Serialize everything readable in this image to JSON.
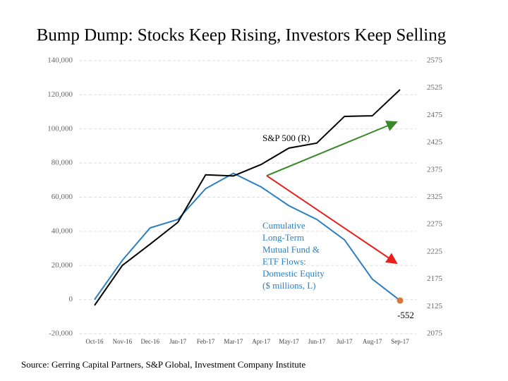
{
  "chart_data": {
    "type": "line",
    "title": "Bump Dump: Stocks Keep Rising, Investors Keep Selling",
    "source": "Source: Gerring Capital Partners, S&P Global, Investment Company Institute",
    "categories": [
      "Oct-16",
      "Nov-16",
      "Dec-16",
      "Jan-17",
      "Feb-17",
      "Mar-17",
      "Apr-17",
      "May-17",
      "Jun-17",
      "Jul-17",
      "Aug-17",
      "Sep-17"
    ],
    "series": [
      {
        "name": "Cumulative Long-Term Mutual Fund & ETF Flows: Domestic Equity ($ millions, L)",
        "color": "#2b7fc3",
        "axis": "y",
        "values": [
          0,
          23000,
          42000,
          47000,
          65000,
          74000,
          66000,
          55000,
          47000,
          35000,
          12000,
          -552
        ]
      },
      {
        "name": "S&P 500 (R)",
        "color": "#000000",
        "axis": "y2",
        "values": [
          2127,
          2200,
          2239,
          2279,
          2366,
          2364,
          2385,
          2415,
          2424,
          2473,
          2474,
          2522
        ]
      }
    ],
    "end_marker_color": "#d9773a",
    "annotations": {
      "sp500": "S&P 500 (R)",
      "flows": [
        "Cumulative",
        "Long-Term",
        "Mutual Fund &",
        "ETF Flows:",
        "Domestic Equity",
        "($ millions, L)"
      ]
    },
    "ylim": [
      -20000,
      140000
    ],
    "yticks": [
      {
        "value": -20000,
        "label": "-20,000"
      },
      0,
      {
        "value": 20000,
        "label": "20,000"
      },
      {
        "value": 40000,
        "label": "40,000"
      },
      {
        "value": 60000,
        "label": "60,000"
      },
      {
        "value": 80000,
        "label": "80,000"
      },
      {
        "value": 100000,
        "label": "100,000"
      },
      {
        "value": 120000,
        "label": "120,000"
      },
      {
        "value": 140000,
        "label": "140,000"
      }
    ],
    "y2lim": [
      2075,
      2575
    ],
    "y2ticks": [
      2075,
      2125,
      2175,
      2225,
      2275,
      2325,
      2375,
      2425,
      2475,
      2525,
      2575
    ],
    "grid": true
  }
}
